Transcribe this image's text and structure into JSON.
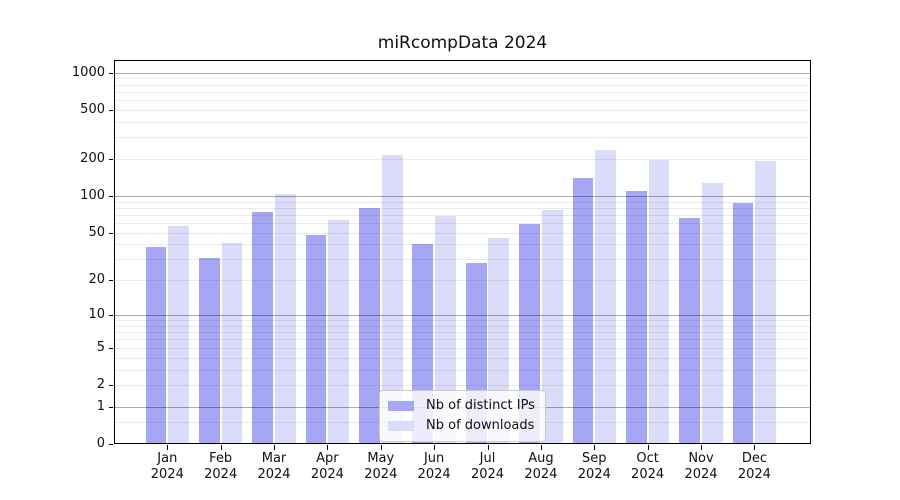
{
  "figure": {
    "background": "#ffffff"
  },
  "chart_data": {
    "type": "bar",
    "title": "miRcompData 2024",
    "categories": [
      "Jan",
      "Feb",
      "Mar",
      "Apr",
      "May",
      "Jun",
      "Jul",
      "Aug",
      "Sep",
      "Oct",
      "Nov",
      "Dec"
    ],
    "year": "2024",
    "series": [
      {
        "name": "Nb of distinct IPs",
        "color": "#a6a6f6",
        "values": [
          38,
          31,
          74,
          48,
          80,
          40,
          28,
          59,
          140,
          110,
          66,
          88
        ]
      },
      {
        "name": "Nb of downloads",
        "color": "#dbdbfa",
        "values": [
          57,
          41,
          103,
          64,
          215,
          69,
          45,
          77,
          235,
          198,
          128,
          193
        ]
      }
    ],
    "xlabel": "",
    "ylabel": "",
    "yscale": "log1p",
    "ylim": [
      0,
      1267
    ],
    "yticks": [
      0,
      1,
      2,
      5,
      10,
      20,
      50,
      100,
      200,
      500,
      1000
    ],
    "major_gridlines": [
      1,
      10,
      100,
      1000
    ],
    "minor_gridlines": [
      0.5,
      2,
      3,
      4,
      5,
      6,
      7,
      8,
      9,
      20,
      30,
      40,
      50,
      60,
      70,
      80,
      90,
      200,
      300,
      400,
      500,
      600,
      700,
      800,
      900
    ],
    "grid": true,
    "legend_position": "lower center"
  },
  "legend": {
    "entries": [
      {
        "label": "Nb of distinct IPs",
        "color": "#a6a6f6"
      },
      {
        "label": "Nb of downloads",
        "color": "#dbdbfa"
      }
    ]
  }
}
